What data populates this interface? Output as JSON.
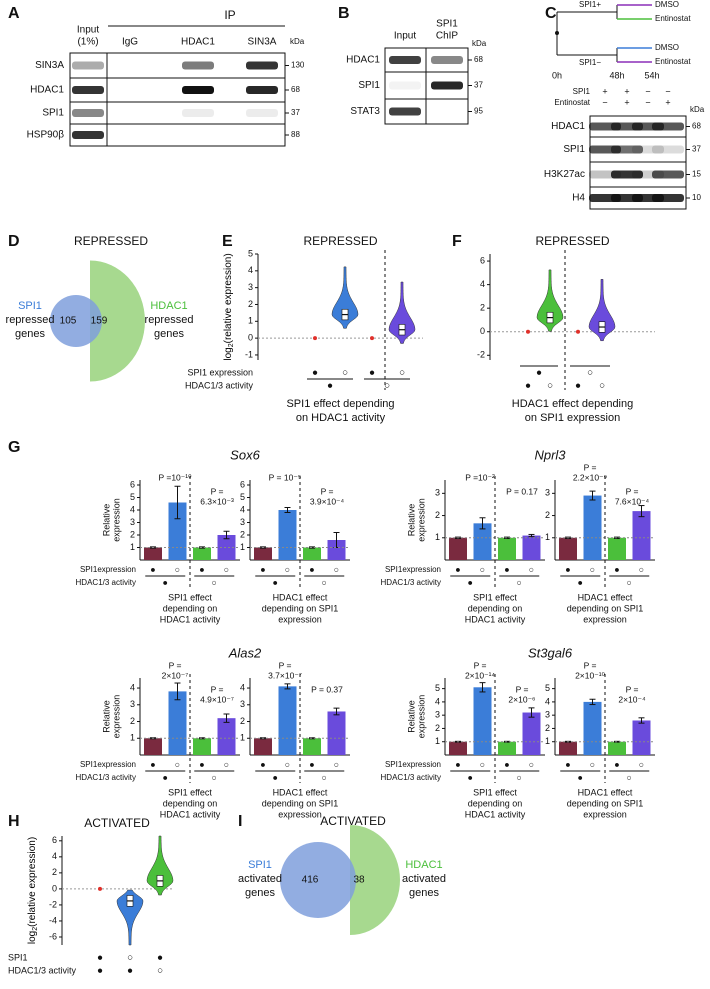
{
  "A": {
    "label": "A",
    "header": "IP",
    "lanes": [
      [
        "Input",
        "(1%)"
      ],
      [
        "IgG"
      ],
      [
        "HDAC1"
      ],
      [
        "SIN3A"
      ]
    ],
    "unit": "kDa",
    "rows": [
      [
        "SIN3A",
        "130"
      ],
      [
        "HDAC1",
        "68"
      ],
      [
        "SPI1",
        "37"
      ],
      [
        "HSP90β",
        "88"
      ]
    ]
  },
  "B": {
    "label": "B",
    "lanes": [
      [
        "Input"
      ],
      [
        "SPI1",
        "ChIP"
      ]
    ],
    "unit": "kDa",
    "rows": [
      [
        "HDAC1",
        "68"
      ],
      [
        "SPI1",
        "37"
      ],
      [
        "STAT3",
        "95"
      ]
    ]
  },
  "C": {
    "label": "C",
    "branches": [
      "SPI1+",
      "SPI1−"
    ],
    "treatments": [
      "DMSO",
      "Entinostat"
    ],
    "times": [
      "0h",
      "48h",
      "54h"
    ],
    "conditions": [
      {
        "name": "SPI1",
        "signs": [
          "+",
          "+",
          "−",
          "−"
        ]
      },
      {
        "name": "Entinostat",
        "signs": [
          "−",
          "+",
          "−",
          "+"
        ]
      }
    ],
    "unit": "kDa",
    "rows": [
      [
        "HDAC1",
        "68"
      ],
      [
        "SPI1",
        "37"
      ],
      [
        "H3K27ac",
        "15"
      ],
      [
        "H4",
        "10"
      ]
    ]
  },
  "D": {
    "label": "D",
    "title": "REPRESSED",
    "left": [
      "SPI1",
      "repressed",
      "genes"
    ],
    "right": [
      "HDAC1",
      "repressed",
      "genes"
    ],
    "counts": [
      105,
      159
    ]
  },
  "E": {
    "label": "E",
    "title": "REPRESSED",
    "ylabel": [
      "log",
      "2",
      "(relative expression)"
    ],
    "ylim": [
      -1.3,
      5
    ],
    "yticks": [
      -1,
      0,
      1,
      2,
      3,
      4,
      5
    ],
    "reference": 0,
    "medians": [
      1.4,
      0.5
    ],
    "colors": [
      "#3b7dd8",
      "#6a4bdc"
    ],
    "rows": [
      {
        "name": "SPI1 expression",
        "marks": [
          "●",
          "○",
          "●",
          "○"
        ]
      },
      {
        "name": "HDAC1/3 activity",
        "marks": [
          "●",
          "○"
        ]
      }
    ],
    "caption": [
      "SPI1 effect depending",
      "on HDAC1 activity"
    ]
  },
  "F": {
    "label": "F",
    "title": "REPRESSED",
    "ylim": [
      -2.4,
      6.6
    ],
    "yticks": [
      -2,
      0,
      2,
      4,
      6
    ],
    "reference": 0,
    "medians": [
      1.2,
      0.4
    ],
    "colors": [
      "#4bbf3b",
      "#6a4bdc"
    ],
    "rows": [
      {
        "marks": [
          "●",
          "○"
        ]
      },
      {
        "marks": [
          "●",
          "○",
          "●",
          "○"
        ]
      }
    ],
    "caption": [
      "HDAC1 effect depending",
      "on SPI1 expression"
    ]
  },
  "G": {
    "label": "G",
    "ylabel": [
      "Relative",
      "expression"
    ],
    "row_labels": [
      "SPI1expression",
      "HDAC1/3 activity"
    ],
    "row_marks": [
      [
        "●",
        "○",
        "●",
        "○"
      ],
      [
        "●",
        "○"
      ]
    ],
    "reference": 1,
    "colors": [
      "#7a2a3f",
      "#3b7dd8",
      "#4bbf3b",
      "#6a4bdc"
    ],
    "genes": [
      {
        "name": "Sox6",
        "ylim": [
          0,
          6.4
        ],
        "yticks": [
          1,
          2,
          3,
          4,
          5,
          6
        ],
        "panels": [
          {
            "values": [
              1,
              4.6,
              1,
              2.0
            ],
            "errors": [
              0.05,
              1.3,
              0.05,
              0.3
            ],
            "p": [
              [
                "P =10⁻¹⁰"
              ],
              [
                "P =",
                "6.3×10⁻³"
              ]
            ],
            "caption": [
              "SPI1 effect",
              "depending on",
              "HDAC1 activity"
            ]
          },
          {
            "values": [
              1,
              4.0,
              1,
              1.6
            ],
            "errors": [
              0.05,
              0.2,
              0.05,
              0.6
            ],
            "p": [
              [
                "P = 10⁻⁵"
              ],
              [
                "P =",
                "3.9×10⁻⁴"
              ]
            ],
            "caption": [
              "HDAC1 effect",
              "depending on SPI1",
              "expression"
            ]
          }
        ]
      },
      {
        "name": "Nprl3",
        "ylim": [
          0,
          3.6
        ],
        "yticks": [
          1,
          2,
          3
        ],
        "panels": [
          {
            "values": [
              1,
              1.65,
              1,
              1.1
            ],
            "errors": [
              0.03,
              0.25,
              0.03,
              0.05
            ],
            "p": [
              [
                "P =10⁻²"
              ],
              [
                "P = 0.17"
              ]
            ],
            "caption": [
              "SPI1 effect",
              "depending on",
              "HDAC1 activity"
            ]
          },
          {
            "values": [
              1,
              2.9,
              1,
              2.2
            ],
            "errors": [
              0.03,
              0.2,
              0.03,
              0.25
            ],
            "p": [
              [
                "P =",
                "2.2×10⁻⁹"
              ],
              [
                "P =",
                "7.6×10⁻⁴"
              ]
            ],
            "caption": [
              "HDAC1 effect",
              "depending on SPI1",
              "expression"
            ]
          }
        ]
      },
      {
        "name": "Alas2",
        "ylim": [
          0,
          4.6
        ],
        "yticks": [
          1,
          2,
          3,
          4
        ],
        "panels": [
          {
            "values": [
              1,
              3.8,
              1,
              2.2
            ],
            "errors": [
              0.03,
              0.5,
              0.03,
              0.25
            ],
            "p": [
              [
                "P =",
                "2×10⁻⁷"
              ],
              [
                "P =",
                "4.9×10⁻⁷"
              ]
            ],
            "caption": [
              "SPI1 effect",
              "depending on",
              "HDAC1 activity"
            ]
          },
          {
            "values": [
              1,
              4.1,
              1,
              2.6
            ],
            "errors": [
              0.03,
              0.15,
              0.03,
              0.2
            ],
            "p": [
              [
                "P =",
                "3.7×10⁻⁷"
              ],
              [
                "P = 0.37"
              ]
            ],
            "caption": [
              "HDAC1 effect",
              "depending on SPI1",
              "expression"
            ]
          }
        ]
      },
      {
        "name": "St3gal6",
        "ylim": [
          0,
          5.8
        ],
        "yticks": [
          1,
          2,
          3,
          4,
          5
        ],
        "panels": [
          {
            "values": [
              1,
              5.1,
              1,
              3.2
            ],
            "errors": [
              0.03,
              0.35,
              0.03,
              0.35
            ],
            "p": [
              [
                "P =",
                "2×10⁻¹⁴"
              ],
              [
                "P =",
                "2×10⁻⁶"
              ]
            ],
            "caption": [
              "SPI1 effect",
              "depending on",
              "HDAC1 activity"
            ]
          },
          {
            "values": [
              1,
              4.0,
              1,
              2.6
            ],
            "errors": [
              0.03,
              0.2,
              0.03,
              0.2
            ],
            "p": [
              [
                "P =",
                "2×10⁻¹⁰"
              ],
              [
                "P =",
                "2×10⁻⁴"
              ]
            ],
            "caption": [
              "HDAC1 effect",
              "depending on SPI1",
              "expression"
            ]
          }
        ]
      }
    ]
  },
  "H": {
    "label": "H",
    "title": "ACTIVATED",
    "ylabel": [
      "log",
      "2",
      "(relative expression)"
    ],
    "ylim": [
      -7,
      6.6
    ],
    "yticks": [
      -6,
      -4,
      -2,
      0,
      2,
      4,
      6
    ],
    "reference": 0,
    "medians": [
      -1.5,
      1.0
    ],
    "colors": [
      "#3b7dd8",
      "#4bbf3b"
    ],
    "rows": [
      {
        "name": "SPI1",
        "marks": [
          "●",
          "○",
          "●"
        ]
      },
      {
        "name": "HDAC1/3 activity",
        "marks": [
          "●",
          "●",
          "○"
        ]
      }
    ]
  },
  "I": {
    "label": "I",
    "title": "ACTIVATED",
    "left": [
      "SPI1",
      "activated",
      "genes"
    ],
    "right": [
      "HDAC1",
      "activated",
      "genes"
    ],
    "counts": [
      416,
      38
    ]
  }
}
